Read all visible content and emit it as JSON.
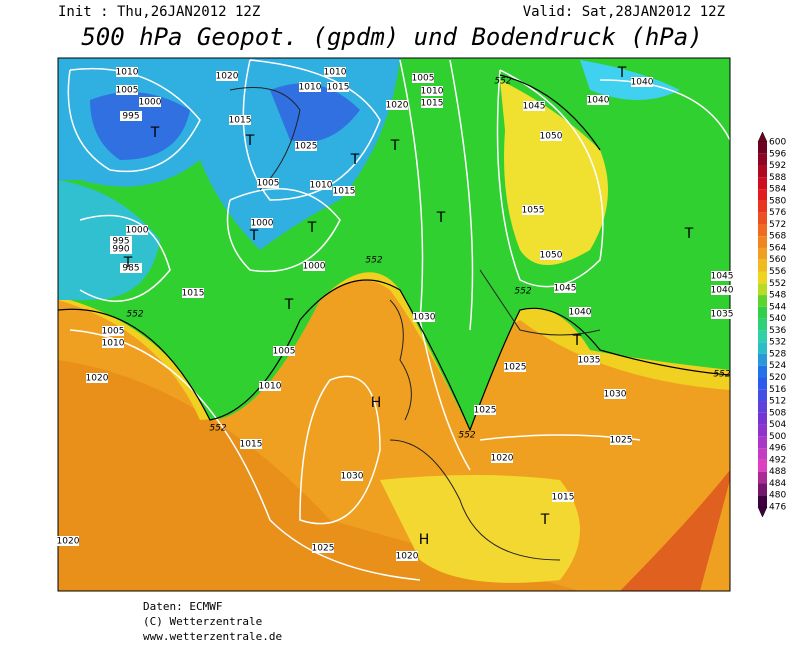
{
  "header": {
    "init": "Init : Thu,26JAN2012 12Z",
    "valid": "Valid: Sat,28JAN2012 12Z",
    "title": "500 hPa Geopot. (gpdm) und Bodendruck (hPa)"
  },
  "colorbar": {
    "levels": [
      600,
      596,
      592,
      588,
      584,
      580,
      576,
      572,
      568,
      564,
      560,
      556,
      552,
      548,
      544,
      540,
      536,
      532,
      528,
      524,
      520,
      516,
      512,
      508,
      504,
      500,
      496,
      492,
      488,
      484,
      480,
      476
    ]
  },
  "labels": {
    "isobars": [
      "1010",
      "1005",
      "1000",
      "995",
      "1020",
      "1015",
      "1025",
      "1010",
      "1010",
      "1015",
      "1005",
      "1010",
      "1015",
      "1000",
      "1000",
      "995",
      "990",
      "985",
      "1015",
      "1000",
      "1005",
      "1010",
      "1020",
      "1005",
      "1010",
      "1015",
      "1030",
      "1025",
      "1020",
      "1020",
      "1020",
      "1005",
      "1010",
      "1015",
      "1045",
      "1040",
      "1040",
      "1050",
      "1055",
      "1050",
      "1045",
      "1040",
      "1030",
      "1035",
      "1025",
      "1025",
      "1030",
      "1025",
      "1020",
      "1015",
      "1045",
      "1040",
      "1035"
    ],
    "contours": [
      "552",
      "552",
      "552",
      "552",
      "552",
      "552",
      "552"
    ],
    "centers": [
      "T",
      "T",
      "T",
      "T",
      "T",
      "T",
      "T",
      "T",
      "T",
      "T",
      "T",
      "T",
      "T",
      "H",
      "H"
    ]
  },
  "footer": [
    "Daten: ECMWF",
    "(C) Wetterzentrale",
    "www.wetterzentrale.de"
  ]
}
